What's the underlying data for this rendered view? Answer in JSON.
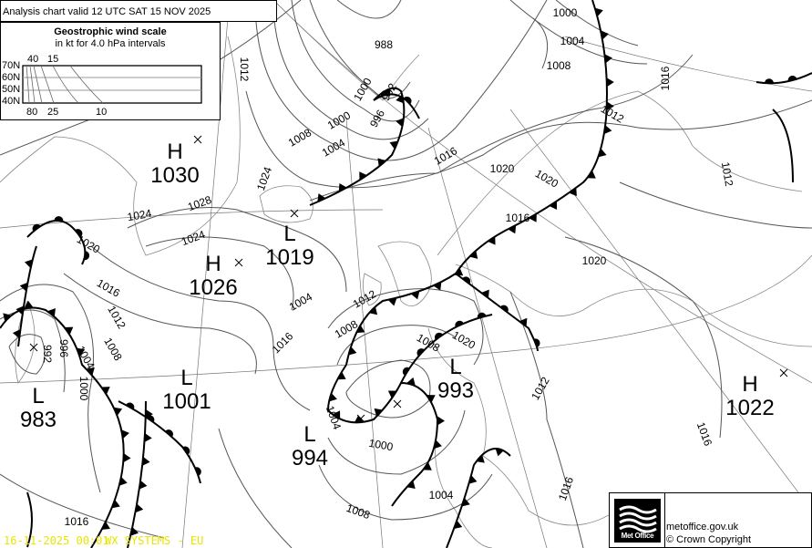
{
  "header": {
    "title": "Analysis chart valid 12 UTC SAT 15  NOV 2025"
  },
  "wind_scale": {
    "title": "Geostrophic wind scale",
    "subtitle": "in kt for 4.0 hPa intervals",
    "latitudes": [
      "70N",
      "60N",
      "50N",
      "40N"
    ],
    "top_speeds": [
      "40",
      "15"
    ],
    "bottom_speeds": [
      "80",
      "25",
      "10"
    ]
  },
  "pressure_centers": [
    {
      "type": "H",
      "value": "1030"
    },
    {
      "type": "L",
      "value": "1019"
    },
    {
      "type": "H",
      "value": "1026"
    },
    {
      "type": "L",
      "value": "1001"
    },
    {
      "type": "L",
      "value": "983"
    },
    {
      "type": "L",
      "value": "994"
    },
    {
      "type": "L",
      "value": "993"
    },
    {
      "type": "H",
      "value": "1022"
    }
  ],
  "isobar_labels": [
    "1000",
    "1004",
    "1008",
    "1016",
    "1012",
    "988",
    "996",
    "992",
    "1000",
    "1004",
    "1008",
    "1016",
    "1020",
    "1016",
    "1020",
    "1024",
    "1028",
    "1024",
    "1024",
    "1020",
    "1016",
    "1012",
    "1008",
    "1004",
    "1000",
    "996",
    "992",
    "1020",
    "1016",
    "1012",
    "1008",
    "1004",
    "1000",
    "1016",
    "1012",
    "1016",
    "1020",
    "1004",
    "1008",
    "1012",
    "1012",
    "1016",
    "1008",
    "1000",
    "1004"
  ],
  "footer": {
    "logo_text": "Met Office",
    "site": "metoffice.gov.uk",
    "copyright": "© Crown Copyright",
    "timestamp": "16-11-2025  00:01",
    "system": "WX SYSTEMS - EU"
  },
  "colors": {
    "isobar": "#555555",
    "coast": "#888888",
    "front": "#000000",
    "stamp": "#e6e600"
  }
}
